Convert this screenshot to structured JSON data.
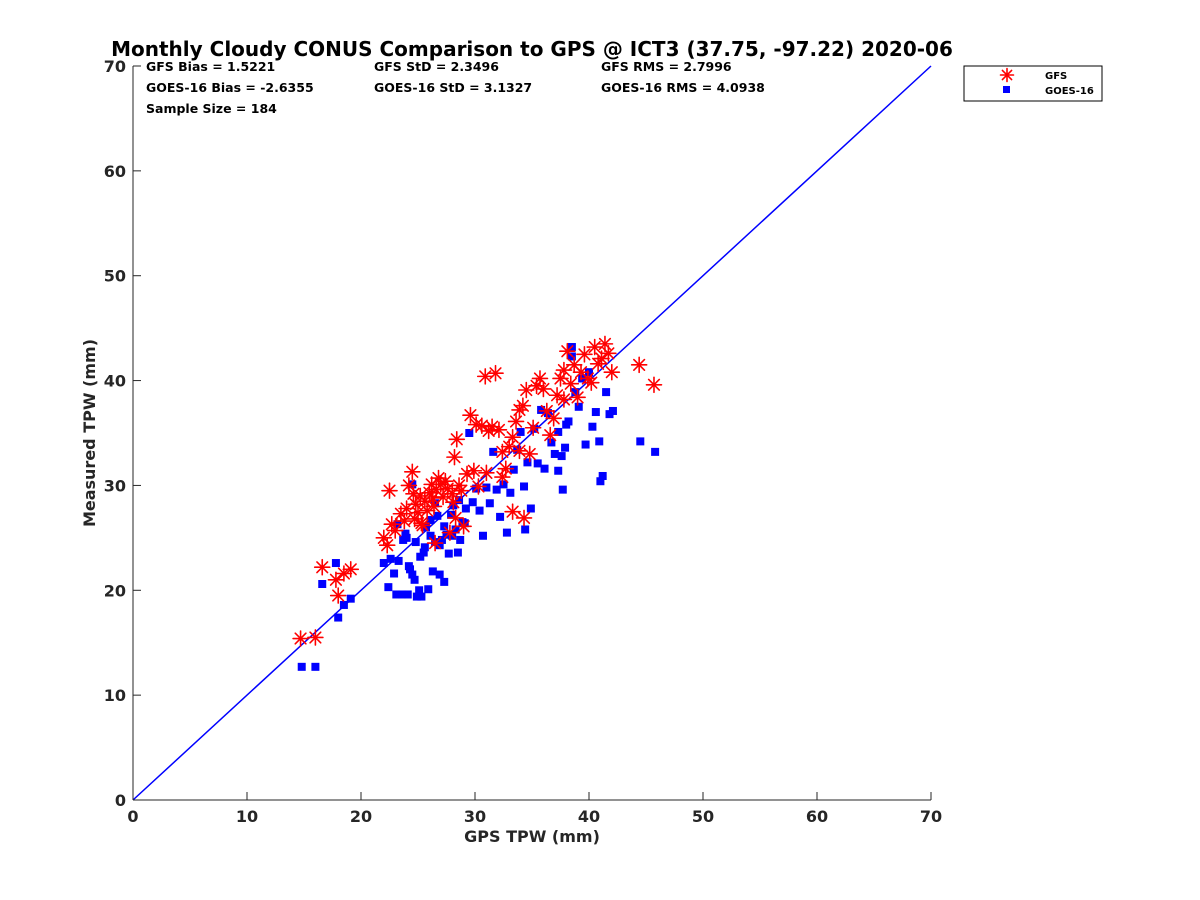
{
  "chart_data": {
    "type": "scatter",
    "title": "Monthly Cloudy CONUS Comparison to GPS @ ICT3 (37.75, -97.22) 2020-06",
    "xlabel": "GPS TPW (mm)",
    "ylabel": "Measured TPW (mm)",
    "xlim": [
      0,
      70
    ],
    "ylim": [
      0,
      70
    ],
    "xticks": [
      0,
      10,
      20,
      30,
      40,
      50,
      60,
      70
    ],
    "yticks": [
      0,
      10,
      20,
      30,
      40,
      50,
      60,
      70
    ],
    "grid": false,
    "legend_position": "top-right",
    "stats": [
      {
        "text": "GFS Bias = 1.5221"
      },
      {
        "text": "GFS StD = 2.3496"
      },
      {
        "text": "GFS RMS = 2.7996"
      },
      {
        "text": "GOES-16 Bias = -2.6355"
      },
      {
        "text": "GOES-16 StD = 3.1327"
      },
      {
        "text": "GOES-16 RMS = 4.0938"
      },
      {
        "text": "Sample Size = 184"
      }
    ],
    "reference_line": {
      "x": [
        0,
        70
      ],
      "y": [
        0,
        70
      ],
      "color": "#0000ff"
    },
    "series": [
      {
        "name": "GFS",
        "marker": "asterisk",
        "color": "#ff0000",
        "x": [
          14.7,
          16.0,
          16.6,
          17.8,
          18.0,
          18.5,
          19.1,
          22.0,
          22.3,
          22.5,
          22.7,
          23.0,
          23.5,
          23.8,
          24.0,
          24.2,
          24.5,
          24.7,
          24.8,
          25.0,
          25.2,
          25.4,
          25.6,
          25.8,
          26.0,
          26.2,
          26.4,
          26.6,
          26.8,
          27.0,
          27.2,
          27.4,
          27.6,
          27.8,
          28.0,
          28.2,
          28.4,
          28.6,
          28.8,
          29.0,
          29.3,
          29.6,
          29.9,
          30.1,
          30.3,
          30.6,
          30.9,
          31.2,
          31.5,
          31.8,
          32.1,
          32.4,
          32.7,
          33.0,
          33.3,
          33.6,
          33.9,
          34.2,
          34.5,
          34.8,
          35.1,
          35.4,
          35.7,
          36.0,
          36.3,
          36.6,
          36.9,
          37.2,
          37.5,
          37.8,
          38.1,
          38.4,
          38.7,
          39.0,
          39.3,
          39.6,
          39.9,
          40.2,
          40.5,
          40.8,
          41.1,
          41.4,
          41.7,
          42.0,
          44.4,
          45.7,
          24.6,
          26.5,
          28.1,
          28.3,
          31.0,
          32.4,
          33.3,
          33.9,
          34.3,
          26.3,
          25.3,
          37.8
        ],
        "y": [
          15.4,
          15.5,
          22.2,
          21.0,
          19.5,
          21.6,
          22.0,
          25.0,
          24.3,
          29.5,
          26.3,
          25.7,
          27.3,
          26.6,
          27.8,
          30.0,
          31.3,
          26.8,
          28.2,
          27.4,
          29.0,
          26.2,
          28.5,
          27.6,
          29.3,
          30.1,
          28.0,
          29.6,
          30.7,
          30.1,
          28.9,
          30.4,
          29.7,
          25.5,
          29.2,
          32.7,
          34.4,
          30.0,
          29.5,
          26.1,
          31.1,
          36.7,
          31.4,
          35.8,
          29.9,
          35.7,
          40.4,
          35.2,
          35.6,
          40.7,
          35.3,
          33.2,
          31.6,
          33.7,
          34.6,
          36.1,
          37.2,
          37.6,
          39.1,
          33.0,
          35.5,
          39.5,
          40.2,
          39.2,
          37.1,
          34.8,
          36.4,
          38.6,
          40.2,
          41.0,
          42.8,
          39.7,
          41.5,
          38.4,
          40.8,
          42.5,
          40.2,
          39.8,
          43.2,
          41.6,
          42.1,
          43.5,
          42.6,
          40.8,
          41.5,
          39.6,
          29.2,
          24.5,
          28.4,
          26.9,
          31.2,
          30.8,
          27.5,
          33.3,
          26.9,
          28.8,
          26.4,
          38.2
        ]
      },
      {
        "name": "GOES-16",
        "marker": "square",
        "color": "#0000ff",
        "x": [
          14.8,
          16.0,
          16.6,
          17.8,
          18.0,
          18.5,
          19.1,
          22.0,
          22.4,
          22.6,
          22.9,
          23.1,
          23.3,
          23.6,
          23.9,
          24.1,
          24.3,
          24.5,
          24.7,
          24.9,
          25.1,
          25.3,
          25.5,
          25.7,
          25.9,
          26.1,
          26.3,
          26.5,
          26.7,
          26.9,
          27.1,
          27.3,
          27.5,
          27.7,
          27.9,
          28.1,
          28.3,
          28.5,
          28.7,
          28.9,
          29.2,
          29.5,
          29.8,
          30.1,
          30.4,
          30.7,
          31.0,
          31.3,
          31.6,
          31.9,
          32.2,
          32.5,
          32.8,
          33.1,
          33.4,
          33.7,
          34.0,
          34.3,
          34.6,
          34.9,
          35.2,
          35.5,
          35.8,
          36.1,
          36.4,
          36.7,
          37.0,
          37.3,
          37.6,
          37.9,
          38.2,
          38.5,
          38.8,
          39.1,
          39.4,
          39.7,
          40.0,
          40.3,
          40.6,
          40.9,
          41.2,
          41.5,
          41.8,
          42.1,
          44.5,
          45.8,
          23.7,
          24.0,
          24.2,
          24.5,
          24.8,
          25.2,
          25.6,
          26.1,
          26.5,
          26.9,
          27.3,
          23.2,
          28.0,
          28.6,
          29.1,
          34.4,
          37.7,
          38.5,
          41.0,
          37.3,
          38.0
        ],
        "y": [
          12.7,
          12.7,
          20.6,
          22.6,
          17.4,
          18.6,
          19.2,
          22.6,
          20.3,
          23.0,
          21.6,
          19.6,
          22.8,
          19.6,
          25.4,
          19.6,
          22.0,
          21.5,
          21.0,
          19.4,
          20.0,
          19.4,
          23.6,
          26.0,
          20.1,
          25.2,
          21.8,
          24.6,
          27.1,
          24.3,
          24.8,
          26.1,
          25.3,
          23.5,
          27.2,
          28.1,
          25.8,
          23.6,
          24.8,
          26.5,
          27.8,
          35.0,
          28.4,
          29.7,
          27.6,
          25.2,
          29.8,
          28.3,
          33.2,
          29.6,
          27.0,
          30.1,
          25.5,
          29.3,
          31.5,
          33.4,
          35.1,
          29.9,
          32.2,
          27.8,
          35.4,
          32.1,
          37.2,
          31.6,
          36.9,
          34.1,
          33.0,
          31.4,
          32.8,
          33.6,
          36.1,
          42.3,
          38.9,
          37.5,
          40.2,
          33.9,
          40.8,
          35.6,
          37.0,
          34.2,
          30.9,
          38.9,
          36.8,
          37.1,
          34.2,
          33.2,
          24.8,
          25.0,
          22.3,
          30.1,
          24.6,
          23.2,
          24.1,
          26.7,
          28.3,
          21.5,
          20.8,
          26.3,
          25.2,
          28.6,
          26.4,
          25.8,
          29.6,
          43.2,
          30.4,
          35.1,
          35.8
        ]
      }
    ]
  }
}
